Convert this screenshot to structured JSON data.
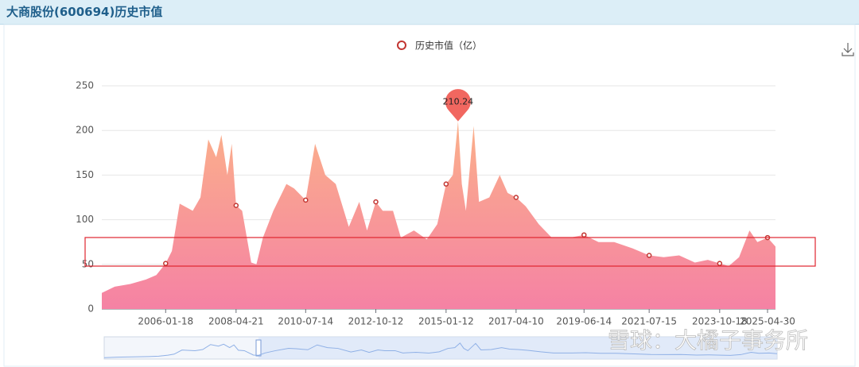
{
  "header": {
    "title": "大商股份(600694)历史市值"
  },
  "watermark": "雪球：大橘子事务所",
  "chart_data": {
    "type": "area",
    "x": [
      "2004-01-02",
      "2004-06-01",
      "2004-12-01",
      "2005-06-01",
      "2005-10-01",
      "2006-01-18",
      "2006-04-01",
      "2006-07-01",
      "2006-12-01",
      "2007-03-01",
      "2007-06-01",
      "2007-09-01",
      "2007-11-01",
      "2008-01-10",
      "2008-03-01",
      "2008-04-21",
      "2008-07-01",
      "2008-10-15",
      "2008-12-15",
      "2009-03-01",
      "2009-07-01",
      "2009-12-01",
      "2010-03-01",
      "2010-07-14",
      "2010-11-01",
      "2011-03-01",
      "2011-07-01",
      "2011-12-01",
      "2012-04-01",
      "2012-07-01",
      "2012-10-12",
      "2013-01-01",
      "2013-05-01",
      "2013-08-01",
      "2014-01-01",
      "2014-06-01",
      "2014-10-01",
      "2015-01-12",
      "2015-04-01",
      "2015-06-01",
      "2015-07-15",
      "2015-09-01",
      "2015-12-01",
      "2016-02-01",
      "2016-06-01",
      "2016-10-01",
      "2017-01-01",
      "2017-04-10",
      "2017-08-01",
      "2018-01-01",
      "2018-06-01",
      "2019-01-01",
      "2019-06-14",
      "2019-12-01",
      "2020-06-01",
      "2021-01-01",
      "2021-07-15",
      "2022-01-01",
      "2022-07-01",
      "2023-01-01",
      "2023-06-01",
      "2023-10-18",
      "2024-02-01",
      "2024-06-01",
      "2024-10-01",
      "2025-01-01",
      "2025-04-30",
      "2025-08-01"
    ],
    "series": [
      {
        "name": "历史市值（亿）",
        "color": "#c23531",
        "values": [
          18,
          25,
          28,
          33,
          38,
          51,
          65,
          118,
          110,
          125,
          190,
          170,
          195,
          150,
          185,
          116,
          110,
          52,
          50,
          80,
          110,
          140,
          135,
          122,
          185,
          150,
          140,
          92,
          120,
          88,
          120,
          110,
          110,
          80,
          88,
          78,
          95,
          140,
          150,
          210.24,
          140,
          110,
          205,
          120,
          125,
          150,
          130,
          125,
          115,
          95,
          80,
          80,
          83,
          75,
          75,
          68,
          60,
          58,
          60,
          52,
          55,
          51,
          48,
          58,
          88,
          75,
          80,
          70
        ]
      }
    ],
    "xlim": [
      "2004-01-02",
      "2025-08-01"
    ],
    "xticks": [
      "2006-01-18",
      "2008-04-21",
      "2010-07-14",
      "2012-10-12",
      "2015-01-12",
      "2017-04-10",
      "2019-06-14",
      "2021-07-15",
      "2023-10-18",
      "2025-04-30"
    ],
    "ylim": [
      0,
      250
    ],
    "yticks": [
      0,
      50,
      100,
      150,
      200,
      250
    ],
    "grid": true
  }
}
